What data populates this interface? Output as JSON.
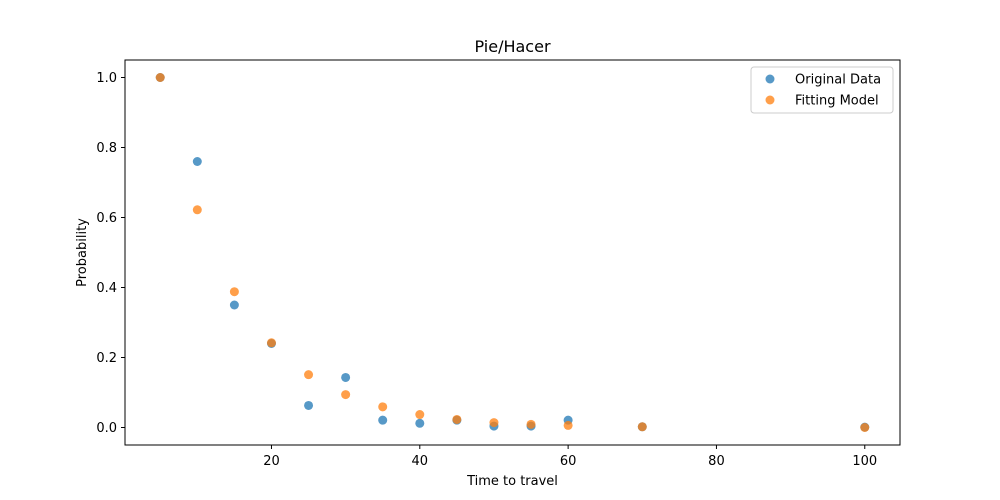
{
  "chart_data": {
    "type": "scatter",
    "title": "Pie/Hacer",
    "xlabel": "Time to travel",
    "ylabel": "Probability",
    "xlim": [
      0.25,
      104.75
    ],
    "ylim": [
      -0.05,
      1.05
    ],
    "xticks": [
      20,
      40,
      60,
      80,
      100
    ],
    "xtick_labels": [
      "20",
      "40",
      "60",
      "80",
      "100"
    ],
    "yticks": [
      0.0,
      0.2,
      0.4,
      0.6,
      0.8,
      1.0
    ],
    "ytick_labels": [
      "0.0",
      "0.2",
      "0.4",
      "0.6",
      "0.8",
      "1.0"
    ],
    "grid": false,
    "legend_position": "top-right",
    "series": [
      {
        "name": "Original Data",
        "color": "#1f77b4",
        "x": [
          5,
          10,
          15,
          20,
          25,
          30,
          35,
          40,
          45,
          50,
          55,
          60,
          70,
          100
        ],
        "y": [
          1.0,
          0.76,
          0.35,
          0.24,
          0.063,
          0.143,
          0.021,
          0.012,
          0.021,
          0.004,
          0.004,
          0.021,
          0.002,
          0.001
        ]
      },
      {
        "name": "Fitting Model",
        "color": "#ff7f0e",
        "x": [
          5,
          10,
          15,
          20,
          25,
          30,
          35,
          40,
          45,
          50,
          55,
          60,
          70,
          100
        ],
        "y": [
          1.0,
          0.622,
          0.388,
          0.242,
          0.151,
          0.094,
          0.059,
          0.037,
          0.023,
          0.014,
          0.009,
          0.006,
          0.002,
          0.0
        ]
      }
    ]
  }
}
